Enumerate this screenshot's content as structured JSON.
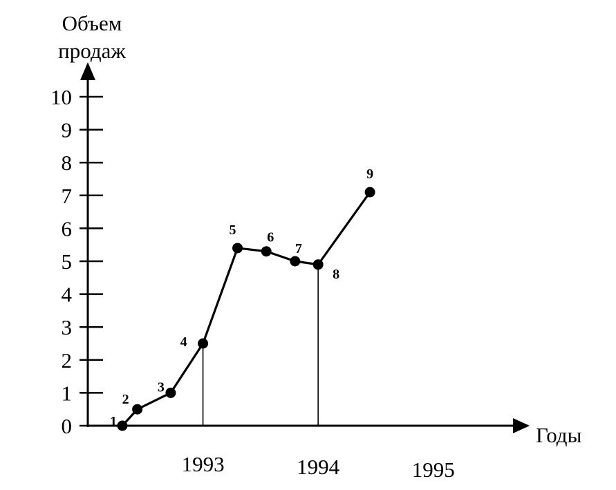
{
  "chart_data": {
    "type": "line",
    "ylabel_lines": [
      "Объем",
      "продаж"
    ],
    "xlabel": "Годы",
    "ylim": [
      0,
      10
    ],
    "y_ticks": [
      "0",
      "1",
      "2",
      "3",
      "4",
      "5",
      "6",
      "7",
      "8",
      "9",
      "10"
    ],
    "x_range": [
      1992.0,
      1995.71
    ],
    "x_tick_labels": [
      {
        "x": 1993,
        "label": "1993"
      },
      {
        "x": 1994,
        "label": "1994"
      },
      {
        "x": 1995,
        "label": "1995"
      }
    ],
    "series": [
      {
        "points": [
          {
            "label": "1",
            "x": 1992.3,
            "y": 0.0
          },
          {
            "label": "2",
            "x": 1992.43,
            "y": 0.5
          },
          {
            "label": "3",
            "x": 1992.72,
            "y": 1.0
          },
          {
            "label": "4",
            "x": 1993.0,
            "y": 2.5
          },
          {
            "label": "5",
            "x": 1993.3,
            "y": 5.4
          },
          {
            "label": "6",
            "x": 1993.55,
            "y": 5.3
          },
          {
            "label": "7",
            "x": 1993.8,
            "y": 5.0
          },
          {
            "label": "8",
            "x": 1994.0,
            "y": 4.9
          },
          {
            "label": "9",
            "x": 1994.45,
            "y": 7.1
          }
        ]
      }
    ],
    "reference_lines_x": [
      1993,
      1994
    ],
    "color": "#000000"
  }
}
